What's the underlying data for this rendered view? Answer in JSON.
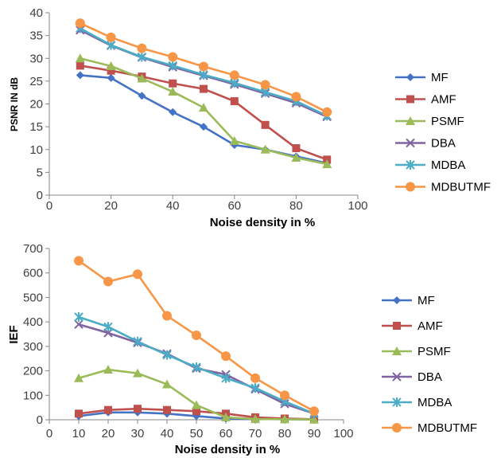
{
  "chart_data": [
    {
      "type": "line",
      "xlabel": "Noise density in %",
      "ylabel": "PSNR IN dB",
      "xlim": [
        0,
        100
      ],
      "ylim": [
        0,
        40
      ],
      "xticks": [
        0,
        20,
        40,
        60,
        80,
        100
      ],
      "yticks": [
        0,
        5,
        10,
        15,
        20,
        25,
        30,
        35,
        40
      ],
      "x": [
        10,
        20,
        30,
        40,
        50,
        60,
        70,
        80,
        90
      ],
      "grid": false,
      "legend_position": "right",
      "series": [
        {
          "name": "MF",
          "color": "#4472C4",
          "marker": "diamond",
          "values": [
            26.3,
            25.7,
            21.8,
            18.2,
            15.0,
            11.0,
            10.0,
            8.5,
            7.0
          ]
        },
        {
          "name": "AMF",
          "color": "#C0504D",
          "marker": "square",
          "values": [
            28.4,
            27.3,
            26.0,
            24.5,
            23.3,
            20.6,
            15.4,
            10.3,
            7.8
          ]
        },
        {
          "name": "PSMF",
          "color": "#9BBB59",
          "marker": "triangle",
          "values": [
            30.0,
            28.3,
            25.6,
            22.7,
            19.2,
            11.9,
            10.0,
            8.2,
            6.8
          ]
        },
        {
          "name": "DBA",
          "color": "#8064A2",
          "marker": "x",
          "values": [
            36.2,
            32.8,
            30.2,
            28.1,
            26.2,
            24.3,
            22.3,
            20.2,
            17.2
          ]
        },
        {
          "name": "MDBA",
          "color": "#4BACC6",
          "marker": "star",
          "values": [
            36.6,
            32.9,
            30.3,
            28.4,
            26.4,
            24.6,
            22.6,
            20.6,
            17.4
          ]
        },
        {
          "name": "MDBUTMF",
          "color": "#F79646",
          "marker": "circle",
          "values": [
            37.7,
            34.6,
            32.2,
            30.3,
            28.2,
            26.3,
            24.2,
            21.6,
            18.2
          ]
        }
      ]
    },
    {
      "type": "line",
      "xlabel": "Noise density in %",
      "ylabel": "IEF",
      "xlim": [
        0,
        100
      ],
      "ylim": [
        0,
        700
      ],
      "xticks": [
        0,
        10,
        20,
        30,
        40,
        50,
        60,
        70,
        80,
        90,
        100
      ],
      "yticks": [
        0,
        100,
        200,
        300,
        400,
        500,
        600,
        700
      ],
      "x": [
        10,
        20,
        30,
        40,
        50,
        60,
        70,
        80,
        90
      ],
      "grid": false,
      "legend_position": "right",
      "series": [
        {
          "name": "MF",
          "color": "#4472C4",
          "marker": "diamond",
          "values": [
            15,
            30,
            30,
            25,
            15,
            5,
            3,
            2,
            1
          ]
        },
        {
          "name": "AMF",
          "color": "#C0504D",
          "marker": "square",
          "values": [
            25,
            40,
            45,
            40,
            35,
            25,
            10,
            5,
            2
          ]
        },
        {
          "name": "PSMF",
          "color": "#9BBB59",
          "marker": "triangle",
          "values": [
            170,
            205,
            190,
            145,
            60,
            10,
            3,
            2,
            1
          ]
        },
        {
          "name": "DBA",
          "color": "#8064A2",
          "marker": "x",
          "values": [
            390,
            355,
            315,
            270,
            210,
            185,
            125,
            65,
            25
          ]
        },
        {
          "name": "MDBA",
          "color": "#4BACC6",
          "marker": "star",
          "values": [
            420,
            380,
            320,
            265,
            215,
            170,
            130,
            75,
            25
          ]
        },
        {
          "name": "MDBUTMF",
          "color": "#F79646",
          "marker": "circle",
          "values": [
            650,
            565,
            595,
            425,
            345,
            260,
            170,
            100,
            35
          ]
        }
      ]
    }
  ]
}
